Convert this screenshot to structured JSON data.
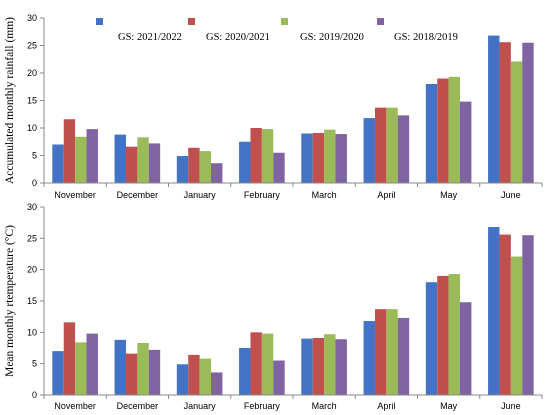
{
  "colors": {
    "series": [
      "#4472C4",
      "#C0504D",
      "#9BBB59",
      "#8064A2"
    ]
  },
  "chart_data": [
    {
      "type": "bar",
      "ylabel": "Accumulated monthly rainfall  (mm)",
      "xlabel": "",
      "ylim": [
        0,
        30
      ],
      "yticks": [
        0,
        5,
        10,
        15,
        20,
        25,
        30
      ],
      "grid": false,
      "legend": "top-inside",
      "categories": [
        "November",
        "December",
        "January",
        "February",
        "March",
        "April",
        "May",
        "June"
      ],
      "series": [
        {
          "name": "GS: 2021/2022",
          "values": [
            7.0,
            8.8,
            4.9,
            7.5,
            9.0,
            11.8,
            18.0,
            26.8
          ]
        },
        {
          "name": "GS: 2020/2021",
          "values": [
            11.6,
            6.6,
            6.4,
            10.0,
            9.1,
            13.7,
            19.0,
            25.6
          ]
        },
        {
          "name": "GS: 2019/2020",
          "values": [
            8.4,
            8.3,
            5.8,
            9.8,
            9.7,
            13.7,
            19.3,
            22.1
          ]
        },
        {
          "name": "GS: 2018/2019",
          "values": [
            9.8,
            7.2,
            3.6,
            5.5,
            8.9,
            12.3,
            14.8,
            25.5
          ]
        }
      ]
    },
    {
      "type": "bar",
      "ylabel": "Mean monthly rtemperature  (°C)",
      "xlabel": "",
      "ylim": [
        0,
        30
      ],
      "yticks": [
        0,
        5,
        10,
        15,
        20,
        25,
        30
      ],
      "grid": false,
      "categories": [
        "November",
        "December",
        "January",
        "February",
        "March",
        "April",
        "May",
        "June"
      ],
      "series": [
        {
          "name": "GS: 2021/2022",
          "values": [
            7.0,
            8.8,
            4.9,
            7.5,
            9.0,
            11.8,
            18.0,
            26.8
          ]
        },
        {
          "name": "GS: 2020/2021",
          "values": [
            11.6,
            6.6,
            6.4,
            10.0,
            9.1,
            13.7,
            19.0,
            25.6
          ]
        },
        {
          "name": "GS: 2019/2020",
          "values": [
            8.4,
            8.3,
            5.8,
            9.8,
            9.7,
            13.7,
            19.3,
            22.1
          ]
        },
        {
          "name": "GS: 2018/2019",
          "values": [
            9.8,
            7.2,
            3.6,
            5.5,
            8.9,
            12.3,
            14.8,
            25.5
          ]
        }
      ]
    }
  ]
}
